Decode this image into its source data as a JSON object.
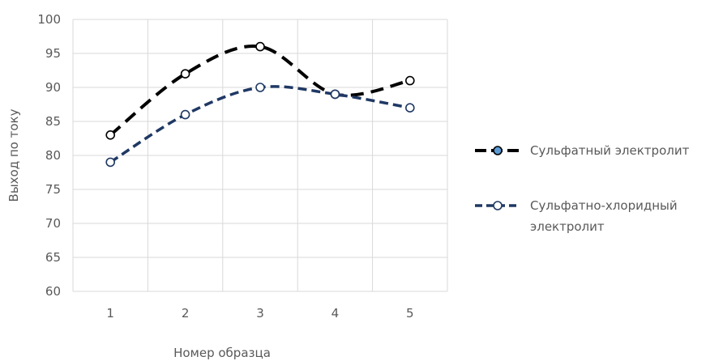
{
  "chart_data": {
    "type": "line",
    "title": "",
    "xlabel": "Номер образца",
    "ylabel": "Выход по току",
    "categories": [
      "1",
      "2",
      "3",
      "4",
      "5"
    ],
    "ylim": [
      60,
      100
    ],
    "yticks": [
      "60",
      "65",
      "70",
      "75",
      "80",
      "85",
      "90",
      "95",
      "100"
    ],
    "grid": true,
    "legend_position": "right",
    "series": [
      {
        "name": "Сульфатный электролит",
        "values": [
          83,
          92,
          96,
          89,
          91
        ],
        "color": "#000000",
        "line_style": "dashed",
        "smooth": true,
        "legend_marker_fill": "#5b9bd5"
      },
      {
        "name": "Сульфатно-хлоридный электролит",
        "name_lines": [
          "Сульфатно-хлоридный",
          "электролит"
        ],
        "values": [
          79,
          86,
          90,
          89,
          87
        ],
        "color": "#1f3864",
        "line_style": "dashed",
        "smooth": true,
        "legend_marker_fill": "#ffffff"
      }
    ]
  }
}
